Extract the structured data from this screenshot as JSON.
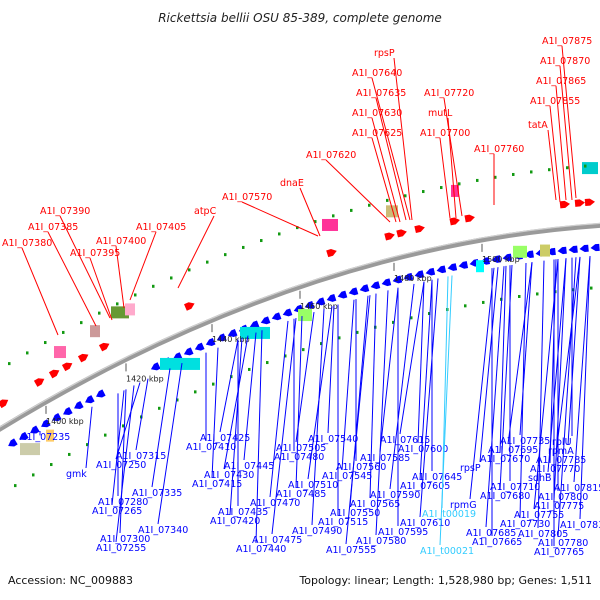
{
  "title": "Rickettsia bellii OSU 85-389, complete genome",
  "footer": {
    "accession": "Accession: NC_009883",
    "topology": "Topology: linear; Length: 1,528,980 bp; Genes: 1,511"
  },
  "colors": {
    "forward": "#ff0000",
    "reverse": "#0000ff",
    "rna": "#33ccff",
    "backbone": "#888888",
    "cds_box": "#00e0e0",
    "marker": "#119911"
  },
  "ticks": [
    "1400 kbp",
    "1420 kbp",
    "1440 kbp",
    "1460 kbp",
    "1480 kbp",
    "1500 kbp"
  ],
  "forward_labels": [
    "A1I_07380",
    "A1I_07385",
    "A1I_07390",
    "A1I_07395",
    "A1I_07400",
    "A1I_07405",
    "atpC",
    "A1I_07570",
    "dnaE",
    "A1I_07620",
    "A1I_07625",
    "A1I_07630",
    "A1I_07635",
    "A1I_07640",
    "rpsP",
    "A1I_07700",
    "mutL",
    "A1I_07720",
    "A1I_07760",
    "tatA",
    "A1I_07855",
    "A1I_07865",
    "A1I_07870",
    "A1I_07875"
  ],
  "reverse_labels": [
    "A1I_07235",
    "gmk",
    "A1I_07265",
    "A1I_07255",
    "A1I_07250",
    "A1I_07280",
    "A1I_07300",
    "A1I_07315",
    "A1I_07335",
    "A1I_07340",
    "A1I_07410",
    "A1I_07415",
    "A1I_07420",
    "A1I_07425",
    "A1I_07430",
    "A1I_07435",
    "A1I_07440",
    "A1I_07445",
    "A1I_07470",
    "A1I_07475",
    "A1I_07480",
    "A1I_07485",
    "A1I_07490",
    "A1I_07505",
    "A1I_07510",
    "A1I_07515",
    "A1I_07540",
    "A1I_07545",
    "A1I_07550",
    "A1I_07555",
    "A1I_07560",
    "A1I_07565",
    "A1I_07580",
    "A1I_07585",
    "A1I_07590",
    "A1I_07595",
    "A1I_07600",
    "A1I_07605",
    "A1I_07610",
    "A1I_07615",
    "A1I_07645",
    "A1I_t00019",
    "A1I_t00021",
    "rpsP",
    "rpmG",
    "A1I_07665",
    "A1I_07670",
    "A1I_07680",
    "A1I_07685",
    "A1I_07695",
    "A1I_07710",
    "A1I_07730",
    "A1I_07735",
    "sdhB",
    "A1I_07755",
    "A1I_07765",
    "A1I_07770",
    "A1I_07775",
    "A1I_07780",
    "A1I_07785",
    "A1I_07800",
    "A1I_07805",
    "rpmA",
    "A1I_07815",
    "A1I_07835",
    "rplU"
  ]
}
